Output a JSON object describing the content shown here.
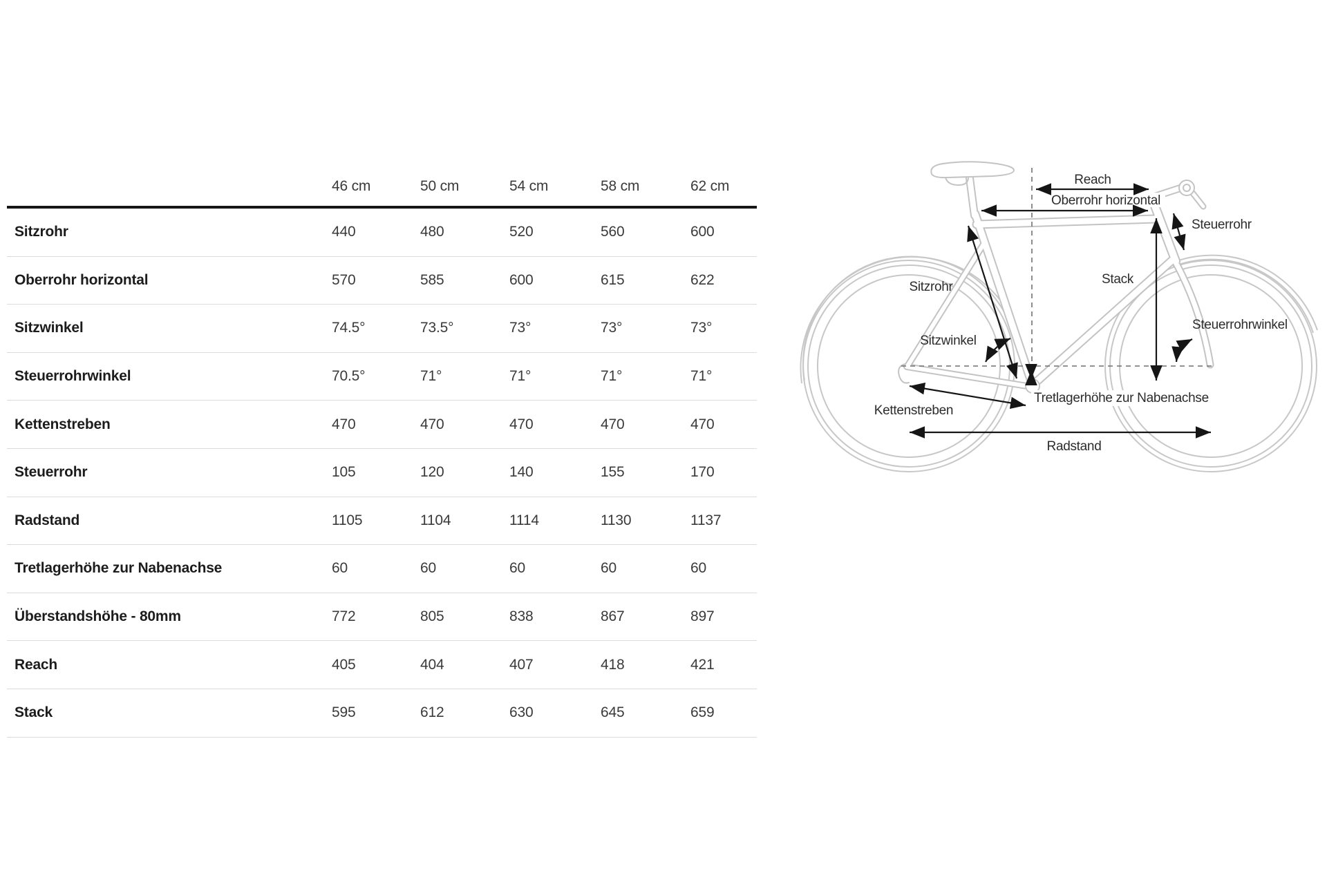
{
  "table": {
    "columns": [
      "46 cm",
      "50 cm",
      "54 cm",
      "58 cm",
      "62 cm"
    ],
    "rows": [
      {
        "label": "Sitzrohr",
        "values": [
          "440",
          "480",
          "520",
          "560",
          "600"
        ]
      },
      {
        "label": "Oberrohr horizontal",
        "values": [
          "570",
          "585",
          "600",
          "615",
          "622"
        ]
      },
      {
        "label": "Sitzwinkel",
        "values": [
          "74.5°",
          "73.5°",
          "73°",
          "73°",
          "73°"
        ]
      },
      {
        "label": "Steuerrohrwinkel",
        "values": [
          "70.5°",
          "71°",
          "71°",
          "71°",
          "71°"
        ]
      },
      {
        "label": "Kettenstreben",
        "values": [
          "470",
          "470",
          "470",
          "470",
          "470"
        ]
      },
      {
        "label": "Steuerrohr",
        "values": [
          "105",
          "120",
          "140",
          "155",
          "170"
        ]
      },
      {
        "label": "Radstand",
        "values": [
          "1105",
          "1104",
          "1114",
          "1130",
          "1137"
        ]
      },
      {
        "label": "Tretlagerhöhe zur Nabenachse",
        "values": [
          "60",
          "60",
          "60",
          "60",
          "60"
        ]
      },
      {
        "label": "Überstandshöhe - 80mm",
        "values": [
          "772",
          "805",
          "838",
          "867",
          "897"
        ]
      },
      {
        "label": "Reach",
        "values": [
          "405",
          "404",
          "407",
          "418",
          "421"
        ]
      },
      {
        "label": "Stack",
        "values": [
          "595",
          "612",
          "630",
          "645",
          "659"
        ]
      }
    ]
  },
  "diagram": {
    "labels": {
      "reach": "Reach",
      "oberrohr_horizontal": "Oberrohr horizontal",
      "steuerrohr": "Steuerrohr",
      "sitzrohr": "Sitzrohr",
      "stack": "Stack",
      "steuerrohrwinkel": "Steuerrohrwinkel",
      "sitzwinkel": "Sitzwinkel",
      "tretlagerhoehe": "Tretlagerhöhe zur Nabenachse",
      "kettenstreben": "Kettenstreben",
      "radstand": "Radstand"
    }
  },
  "colors": {
    "background": "#ffffff",
    "table_header_rule": "#161616",
    "table_row_rule": "#dbdbdb",
    "table_label_text": "#1c1c1c",
    "table_value_text": "#3a3a3a",
    "frame_outline": "#c3c3c3",
    "dimension_arrow": "#151515",
    "dashed_reference": "#6f6f6f"
  }
}
